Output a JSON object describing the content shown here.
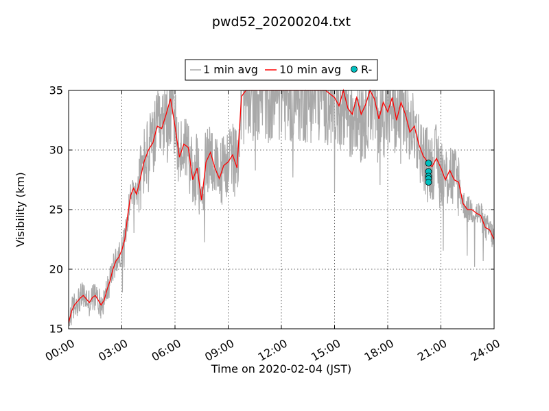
{
  "chart_data": {
    "type": "line",
    "title": "pwd52_20200204.txt",
    "xlabel": "Time on 2020-02-04 (JST)",
    "ylabel": "Visibility (km)",
    "xlim": [
      0,
      24
    ],
    "ylim": [
      15,
      35
    ],
    "x_ticks": [
      0,
      3,
      6,
      9,
      12,
      15,
      18,
      21,
      24
    ],
    "x_tick_labels": [
      "00:00",
      "03:00",
      "06:00",
      "09:00",
      "12:00",
      "15:00",
      "18:00",
      "21:00",
      "24:00"
    ],
    "y_ticks": [
      15,
      20,
      25,
      30,
      35
    ],
    "grid": true,
    "legend": {
      "placement": "top-center",
      "entries": [
        "1 min avg",
        "10 min avg",
        "R-"
      ]
    },
    "colors": {
      "one_min": "#a9a9a9",
      "ten_min": "#ff0000",
      "marker": "#00bfbf"
    },
    "series": [
      {
        "name": "10 min avg",
        "x": [
          0.0,
          0.17,
          0.33,
          0.5,
          0.67,
          0.83,
          1.0,
          1.17,
          1.33,
          1.5,
          1.67,
          1.83,
          2.0,
          2.17,
          2.33,
          2.5,
          2.67,
          2.83,
          3.0,
          3.17,
          3.33,
          3.5,
          3.67,
          3.83,
          4.0,
          4.25,
          4.5,
          4.75,
          5.0,
          5.25,
          5.5,
          5.75,
          6.0,
          6.25,
          6.5,
          6.75,
          7.0,
          7.25,
          7.5,
          7.75,
          8.0,
          8.25,
          8.5,
          8.75,
          9.0,
          9.25,
          9.5,
          9.75,
          10.0,
          10.5,
          11.0,
          11.5,
          12.0,
          12.5,
          13.0,
          13.5,
          14.0,
          14.5,
          15.0,
          15.25,
          15.5,
          15.75,
          16.0,
          16.25,
          16.5,
          16.75,
          17.0,
          17.25,
          17.5,
          17.75,
          18.0,
          18.25,
          18.5,
          18.75,
          19.0,
          19.25,
          19.5,
          19.75,
          20.0,
          20.25,
          20.5,
          20.75,
          21.0,
          21.25,
          21.5,
          21.75,
          22.0,
          22.25,
          22.5,
          22.75,
          23.0,
          23.25,
          23.5,
          23.75,
          24.0
        ],
        "y": [
          15.5,
          16.5,
          17.0,
          17.3,
          17.6,
          17.8,
          17.5,
          17.2,
          17.6,
          17.8,
          17.4,
          17.0,
          17.4,
          18.3,
          19.0,
          20.0,
          20.7,
          21.0,
          21.6,
          22.5,
          24.5,
          26.2,
          26.8,
          26.3,
          27.3,
          29.0,
          30.0,
          30.6,
          32.0,
          31.8,
          33.0,
          34.3,
          32.0,
          29.4,
          30.5,
          30.2,
          27.5,
          28.5,
          25.8,
          29.0,
          29.8,
          28.5,
          27.6,
          28.7,
          29.0,
          29.6,
          28.5,
          34.5,
          35.0,
          35.0,
          35.0,
          35.0,
          35.0,
          35.0,
          35.0,
          35.0,
          35.0,
          35.0,
          34.4,
          33.7,
          35.0,
          33.5,
          33.0,
          34.4,
          33.0,
          33.8,
          35.0,
          34.3,
          32.6,
          34.0,
          33.2,
          34.4,
          32.5,
          34.0,
          33.0,
          31.5,
          32.0,
          30.5,
          29.5,
          29.0,
          28.6,
          29.3,
          28.5,
          27.5,
          28.3,
          27.5,
          27.3,
          25.5,
          25.0,
          25.0,
          24.7,
          24.5,
          23.5,
          23.3,
          22.5
        ]
      },
      {
        "name": "R-",
        "x": [
          20.3,
          20.3,
          20.3,
          20.3,
          20.3
        ],
        "y": [
          28.9,
          28.2,
          27.8,
          27.6,
          27.3
        ]
      }
    ]
  }
}
